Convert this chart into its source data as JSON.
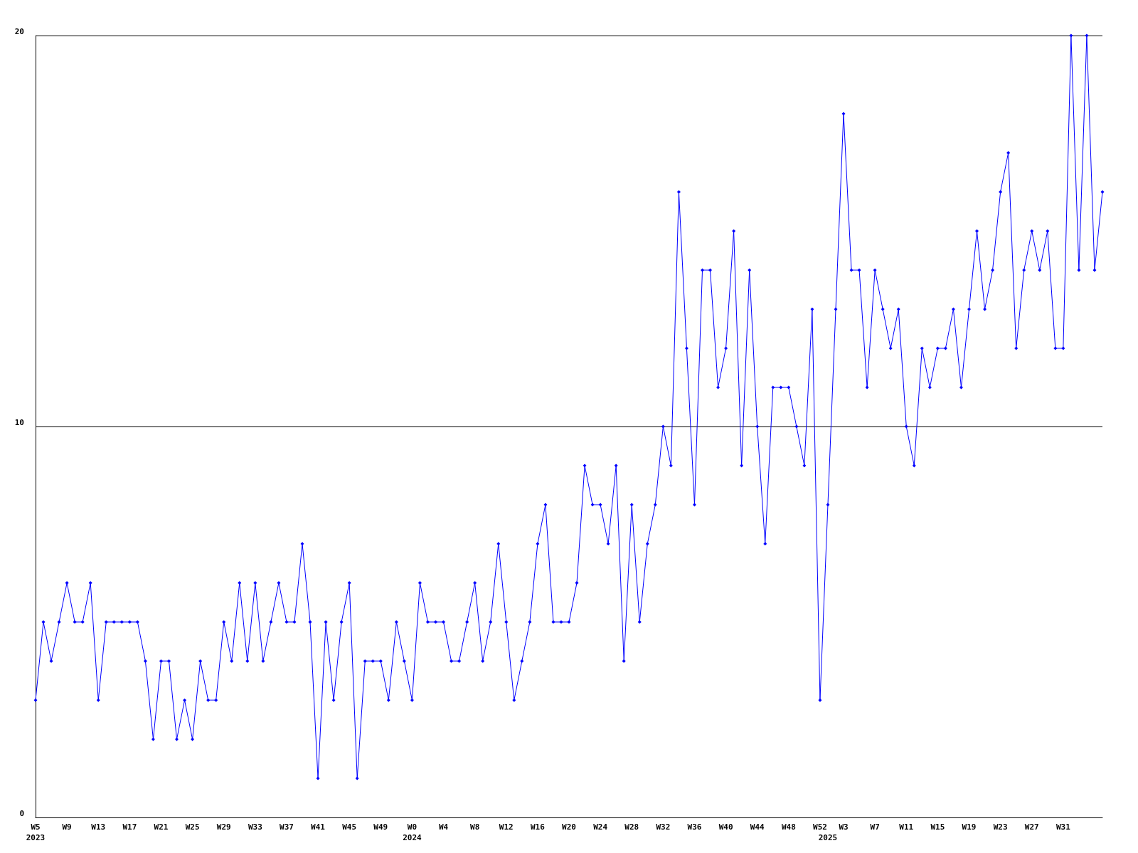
{
  "chart_data": {
    "type": "line",
    "categories": [
      "W5\n2023",
      null,
      null,
      null,
      "W9",
      null,
      null,
      null,
      "W13",
      null,
      null,
      null,
      "W17",
      null,
      null,
      null,
      "W21",
      null,
      null,
      null,
      "W25",
      null,
      null,
      null,
      "W29",
      null,
      null,
      null,
      "W33",
      null,
      null,
      null,
      "W37",
      null,
      null,
      null,
      "W41",
      null,
      null,
      null,
      "W45",
      null,
      null,
      null,
      "W49",
      null,
      null,
      null,
      "W0\n2024",
      null,
      null,
      null,
      "W4",
      null,
      null,
      null,
      "W8",
      null,
      null,
      null,
      "W12",
      null,
      null,
      null,
      "W16",
      null,
      null,
      null,
      "W20",
      null,
      null,
      null,
      "W24",
      null,
      null,
      null,
      "W28",
      null,
      null,
      null,
      "W32",
      null,
      null,
      null,
      "W36",
      null,
      null,
      null,
      "W40",
      null,
      null,
      null,
      "W44",
      null,
      null,
      null,
      "W48",
      null,
      null,
      null,
      "W52",
      "\n2025",
      null,
      "W3",
      null,
      null,
      null,
      "W7",
      null,
      null,
      null,
      "W11",
      null,
      null,
      null,
      "W15",
      null,
      null,
      null,
      "W19",
      null,
      null,
      null,
      "W23",
      null,
      null,
      null,
      "W27",
      null,
      null,
      null,
      "W31",
      null,
      null,
      null,
      null,
      null
    ],
    "series": [
      {
        "color": "#0000ff",
        "values": [
          3,
          5,
          4,
          5,
          6,
          5,
          5,
          6,
          3,
          5,
          5,
          5,
          5,
          5,
          4,
          2,
          4,
          4,
          2,
          3,
          2,
          4,
          3,
          3,
          5,
          4,
          6,
          4,
          6,
          4,
          5,
          6,
          5,
          5,
          7,
          5,
          1,
          5,
          3,
          5,
          6,
          1,
          4,
          4,
          4,
          3,
          5,
          4,
          3,
          6,
          5,
          5,
          5,
          4,
          4,
          5,
          6,
          4,
          5,
          7,
          5,
          3,
          4,
          5,
          7,
          8,
          5,
          5,
          5,
          6,
          9,
          8,
          8,
          7,
          9,
          4,
          8,
          5,
          7,
          8,
          10,
          9,
          16,
          12,
          8,
          14,
          14,
          11,
          12,
          15,
          9,
          14,
          10,
          7,
          11,
          11,
          11,
          10,
          9,
          13,
          3,
          8,
          13,
          18,
          14,
          14,
          11,
          14,
          13,
          12,
          13,
          10,
          9,
          12,
          11,
          12,
          12,
          13,
          11,
          13,
          15,
          13,
          14,
          16,
          17,
          12,
          14,
          15,
          14,
          15,
          12,
          12,
          20,
          14,
          20,
          14,
          16
        ]
      }
    ],
    "ylim": [
      0,
      20
    ],
    "yticks": [
      0,
      10,
      20
    ],
    "grid": "y",
    "marker": "diamond",
    "line_style": "solid"
  }
}
